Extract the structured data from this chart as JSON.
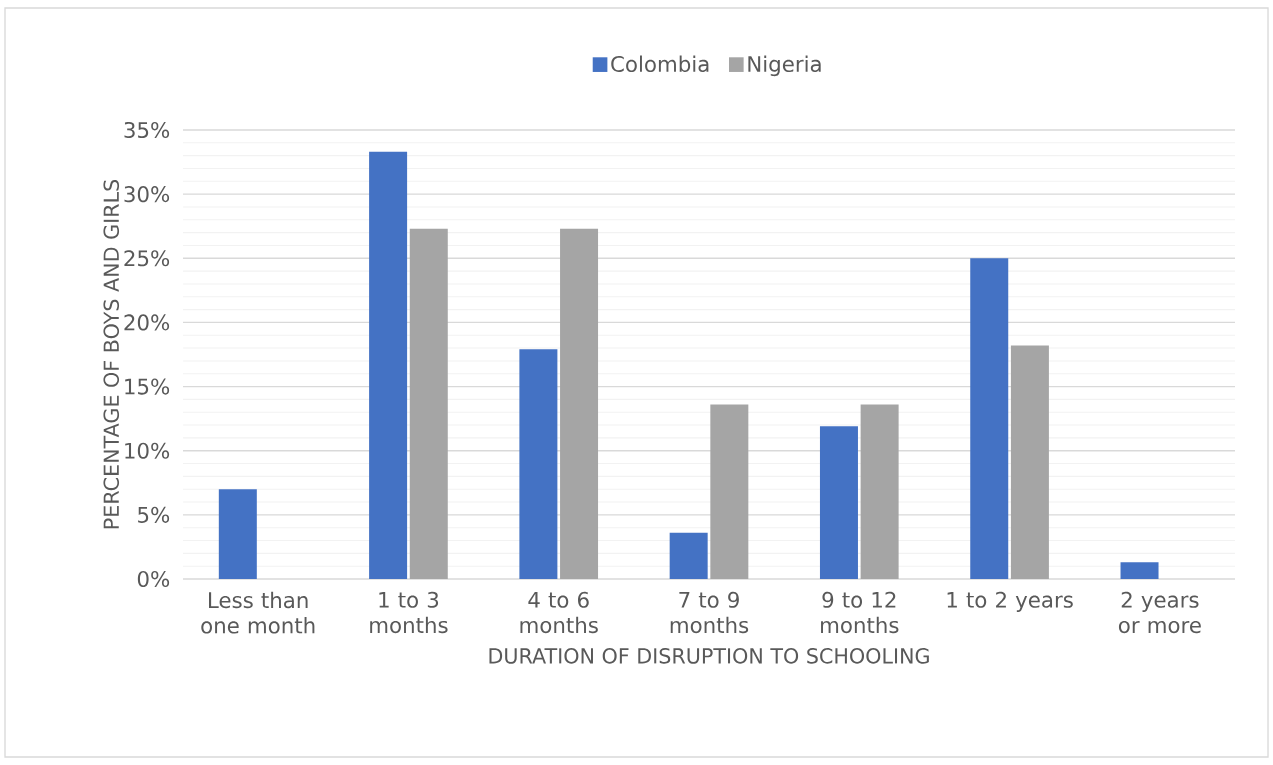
{
  "chart_data": {
    "type": "bar",
    "xlabel": "DURATION OF DISRUPTION TO SCHOOLING",
    "ylabel": "PERCENTAGE OF BOYS AND GIRLS",
    "categories": [
      "Less than one month",
      "1 to 3 months",
      "4 to 6 months",
      "7 to 9 months",
      "9 to 12 months",
      "1 to 2 years",
      "2 years or more"
    ],
    "series": [
      {
        "name": "Colombia",
        "color": "#4472c4",
        "values": [
          7.0,
          33.3,
          17.9,
          3.6,
          11.9,
          25.0,
          1.3
        ]
      },
      {
        "name": "Nigeria",
        "color": "#a5a5a5",
        "values": [
          0,
          27.3,
          27.3,
          13.6,
          13.6,
          18.2,
          0
        ]
      }
    ],
    "ylim": [
      0,
      35
    ],
    "yticks": [
      {
        "value": 0,
        "label": "0%"
      },
      {
        "value": 1,
        "label": null
      },
      {
        "value": 2,
        "label": null
      },
      {
        "value": 3,
        "label": null
      },
      {
        "value": 4,
        "label": null
      },
      {
        "value": 5,
        "label": "5%"
      },
      {
        "value": 6,
        "label": null
      },
      {
        "value": 7,
        "label": null
      },
      {
        "value": 8,
        "label": null
      },
      {
        "value": 9,
        "label": null
      },
      {
        "value": 10,
        "label": "10%"
      },
      {
        "value": 11,
        "label": null
      },
      {
        "value": 12,
        "label": null
      },
      {
        "value": 13,
        "label": null
      },
      {
        "value": 14,
        "label": null
      },
      {
        "value": 15,
        "label": "15%"
      },
      {
        "value": 16,
        "label": null
      },
      {
        "value": 17,
        "label": null
      },
      {
        "value": 18,
        "label": null
      },
      {
        "value": 19,
        "label": null
      },
      {
        "value": 20,
        "label": "20%"
      },
      {
        "value": 21,
        "label": null
      },
      {
        "value": 22,
        "label": null
      },
      {
        "value": 23,
        "label": null
      },
      {
        "value": 24,
        "label": null
      },
      {
        "value": 25,
        "label": "25%"
      },
      {
        "value": 26,
        "label": null
      },
      {
        "value": 27,
        "label": null
      },
      {
        "value": 28,
        "label": null
      },
      {
        "value": 29,
        "label": null
      },
      {
        "value": 30,
        "label": "30%"
      },
      {
        "value": 31,
        "label": null
      },
      {
        "value": 32,
        "label": null
      },
      {
        "value": 33,
        "label": null
      },
      {
        "value": 34,
        "label": null
      },
      {
        "value": 35,
        "label": "35%"
      }
    ],
    "grid": "y",
    "legend": "top"
  }
}
